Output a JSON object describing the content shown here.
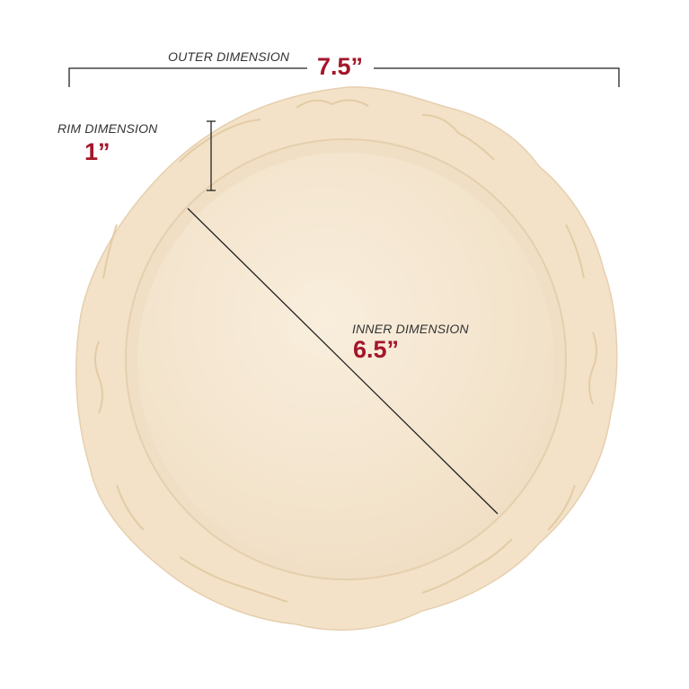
{
  "outer": {
    "label": "OUTER DIMENSION",
    "value": "7.5”"
  },
  "rim": {
    "label": "RIM DIMENSION",
    "value": "1”"
  },
  "inner": {
    "label": "INNER DIMENSION",
    "value": "6.5”"
  },
  "colors": {
    "accent": "#a3162a",
    "plate": "#f5e7d2",
    "rim": "#efdcc0",
    "line": "#222222"
  }
}
